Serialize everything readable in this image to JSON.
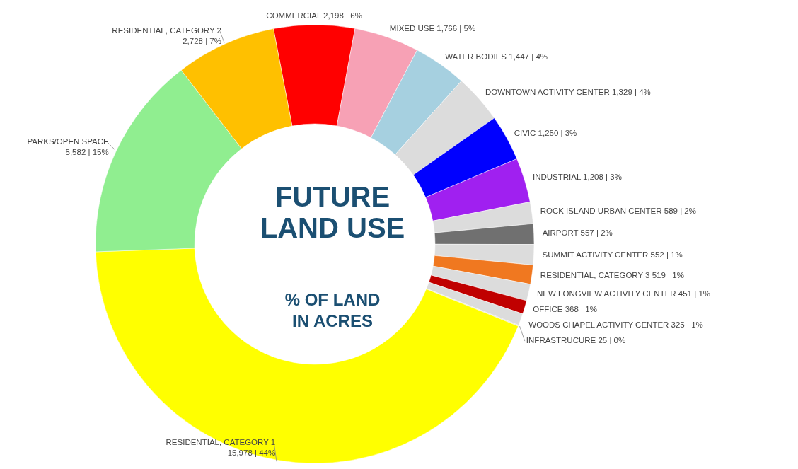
{
  "chart_data": {
    "type": "donut",
    "title": "FUTURE LAND USE",
    "subtitle": "% OF LAND IN ACRES",
    "categories": [
      "COMMERCIAL",
      "MIXED USE",
      "WATER BODIES",
      "DOWNTOWN ACTIVITY CENTER",
      "CIVIC",
      "INDUSTRIAL",
      "ROCK ISLAND URBAN CENTER",
      "AIRPORT",
      "SUMMIT ACTIVITY CENTER",
      "RESIDENTIAL, CATEGORY 3",
      "NEW LONGVIEW ACTIVITY CENTER",
      "OFFICE",
      "WOODS CHAPEL ACTIVITY CENTER",
      "INFRASTRUCURE",
      "RESIDENTIAL, CATEGORY 1",
      "PARKS/OPEN SPACE",
      "RESIDENTIAL, CATEGORY 2"
    ],
    "values": [
      2198,
      1766,
      1447,
      1329,
      1250,
      1208,
      589,
      557,
      552,
      519,
      451,
      368,
      325,
      25,
      15978,
      5582,
      2728
    ],
    "value_labels": [
      "2,198 | 6%",
      "1,766 | 5%",
      "1,447 | 4%",
      "1,329 | 4%",
      "1,250 | 3%",
      "1,208 | 3%",
      "589 | 2%",
      "557 | 2%",
      "552 | 1%",
      "519 | 1%",
      "451 | 1%",
      "368 | 1%",
      "325 | 1%",
      "25 | 0%",
      "15,978 | 44%",
      "5,582 | 15%",
      "2,728 | 7%"
    ],
    "colors": [
      "#ff0000",
      "#f7a1b5",
      "#a6d0e0",
      "#dcdcdc",
      "#0000ff",
      "#a020f0",
      "#dcdcdc",
      "#707070",
      "#dcdcdc",
      "#f07820",
      "#dcdcdc",
      "#c00000",
      "#dcdcdc",
      "#dcdcdc",
      "#ffff00",
      "#90ee90",
      "#ffc000"
    ]
  }
}
